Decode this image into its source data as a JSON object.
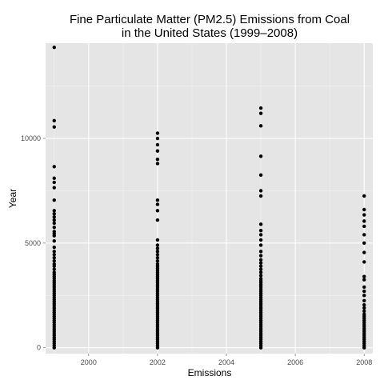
{
  "chart_data": {
    "type": "scatter",
    "title_line1": "Fine Particulate Matter (PM2.5) Emissions from Coal",
    "title_line2": "in the United States (1999–2008)",
    "xlabel": "Emissions",
    "ylabel": "Year",
    "xlim": [
      1998.75,
      2008.25
    ],
    "ylim": [
      -280,
      14550
    ],
    "x_ticks": [
      2000,
      2002,
      2004,
      2006,
      2008
    ],
    "x_tick_labels": [
      "2000",
      "2002",
      "2004",
      "2006",
      "2008"
    ],
    "y_ticks": [
      0,
      5000,
      10000
    ],
    "y_tick_labels": [
      "0",
      "5000",
      "10000"
    ],
    "grid": true,
    "legend": "none",
    "colors": {
      "panel": "#e5e5e5",
      "grid_major": "#ffffff",
      "grid_minor": "#f2f2f2",
      "point": "#000000"
    },
    "points": [
      {
        "x": 1999,
        "y": [
          14350,
          10850,
          10550,
          8650,
          8100,
          7900,
          7650,
          7050,
          6550,
          6400,
          6250,
          6100,
          5950,
          5750,
          5550,
          5450,
          5350,
          5100,
          4800,
          4600,
          4450,
          4300,
          4150,
          4000,
          3900,
          3750,
          3600,
          3500,
          3400,
          3300,
          3200,
          3100,
          3000,
          2900,
          2800,
          2700,
          2600,
          2500,
          2400,
          2300,
          2200,
          2100,
          2000,
          1900,
          1800,
          1700,
          1600,
          1500,
          1400,
          1300,
          1200,
          1100,
          1000,
          900,
          800,
          700,
          600,
          500,
          400,
          300,
          200,
          100,
          0
        ]
      },
      {
        "x": 2002,
        "y": [
          10250,
          10000,
          9700,
          9400,
          9000,
          8800,
          7050,
          6850,
          6550,
          6100,
          5150,
          4900,
          4750,
          4600,
          4450,
          4300,
          4150,
          4000,
          3900,
          3800,
          3700,
          3600,
          3500,
          3400,
          3300,
          3200,
          3100,
          3000,
          2900,
          2800,
          2700,
          2600,
          2500,
          2400,
          2300,
          2200,
          2100,
          2000,
          1900,
          1800,
          1700,
          1600,
          1500,
          1400,
          1300,
          1200,
          1100,
          1000,
          900,
          800,
          700,
          600,
          500,
          400,
          300,
          200,
          100,
          0
        ]
      },
      {
        "x": 2005,
        "y": [
          11450,
          11200,
          10600,
          9150,
          8250,
          7500,
          7250,
          5900,
          5600,
          5400,
          5150,
          4900,
          4600,
          4400,
          4200,
          4050,
          3900,
          3750,
          3600,
          3450,
          3300,
          3200,
          3100,
          3000,
          2900,
          2800,
          2700,
          2600,
          2500,
          2400,
          2300,
          2200,
          2100,
          2000,
          1900,
          1800,
          1700,
          1600,
          1500,
          1400,
          1300,
          1200,
          1100,
          1000,
          900,
          800,
          700,
          600,
          500,
          400,
          300,
          200,
          100,
          0
        ]
      },
      {
        "x": 2008,
        "y": [
          7250,
          6600,
          6350,
          6050,
          5800,
          5400,
          5000,
          4550,
          4100,
          3400,
          3250,
          2900,
          2700,
          2500,
          2250,
          2050,
          1900,
          1750,
          1600,
          1500,
          1400,
          1300,
          1200,
          1100,
          1000,
          900,
          800,
          700,
          600,
          500,
          400,
          300,
          200,
          100,
          0
        ]
      }
    ]
  }
}
